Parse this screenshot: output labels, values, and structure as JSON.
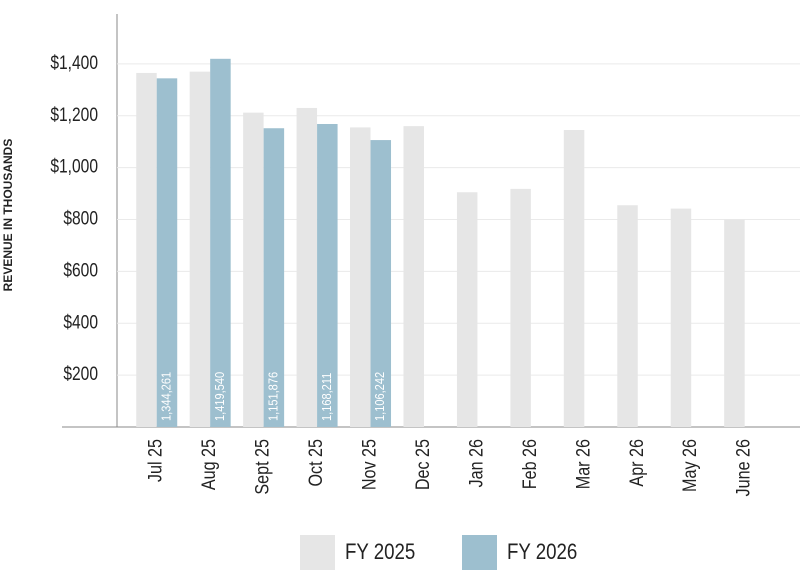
{
  "chart_data": {
    "type": "bar",
    "y_label": "REVENUE IN THOUSANDS",
    "categories": [
      "Jul 25",
      "Aug 25",
      "Sept 25",
      "Oct 25",
      "Nov 25",
      "Dec 25",
      "Jan 26",
      "Feb 26",
      "Mar 26",
      "Apr 26",
      "May 26",
      "June 26"
    ],
    "series": [
      {
        "name": "FY 2025",
        "color": "#e6e6e6",
        "values": [
          1365,
          1370,
          1212,
          1230,
          1155,
          1160,
          905,
          918,
          1145,
          855,
          842,
          800
        ]
      },
      {
        "name": "FY 2026",
        "color": "#9dbfcf",
        "values": [
          1344.261,
          1419.54,
          1151.876,
          1168.211,
          1106.242,
          null,
          null,
          null,
          null,
          null,
          null,
          null
        ],
        "value_labels": [
          "1,344,261",
          "1,419,540",
          "1,151,876",
          "1,168,211",
          "1,106,242",
          null,
          null,
          null,
          null,
          null,
          null,
          null
        ]
      }
    ],
    "ylim": [
      0,
      1600
    ],
    "yticks": [
      {
        "value": 200,
        "label": "$200"
      },
      {
        "value": 400,
        "label": "$400"
      },
      {
        "value": 600,
        "label": "$600"
      },
      {
        "value": 800,
        "label": "$800"
      },
      {
        "value": 1000,
        "label": "$1,000"
      },
      {
        "value": 1200,
        "label": "$1,200"
      },
      {
        "value": 1400,
        "label": "$1,400"
      }
    ],
    "grid": true
  }
}
